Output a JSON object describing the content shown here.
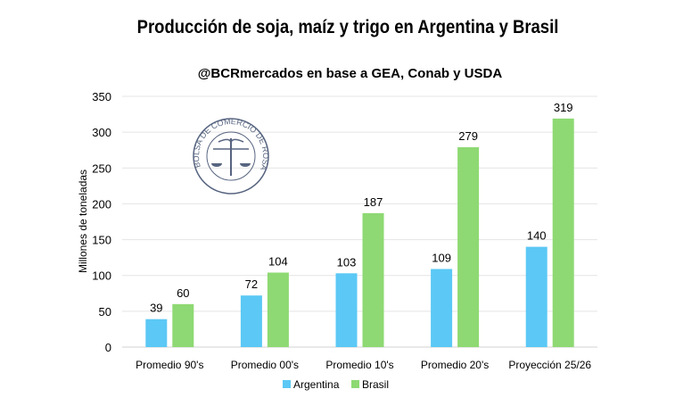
{
  "chart_data": {
    "type": "bar",
    "title": "Producción de soja, maíz y trigo en Argentina y Brasil",
    "subtitle": "@BCRmercados en base a GEA, Conab y USDA",
    "ylabel": "Millones de toneladas",
    "xlabel": "",
    "ylim": [
      0,
      350
    ],
    "yticks": [
      0,
      50,
      100,
      150,
      200,
      250,
      300,
      350
    ],
    "grid": true,
    "legend": "bottom",
    "categories": [
      "Promedio 90's",
      "Promedio 00's",
      "Promedio 10's",
      "Promedio 20's",
      "Proyección 25/26"
    ],
    "series": [
      {
        "name": "Argentina",
        "color": "#5bc8f5",
        "values": [
          39,
          72,
          103,
          109,
          140
        ]
      },
      {
        "name": "Brasil",
        "color": "#8ed973",
        "values": [
          60,
          104,
          187,
          279,
          319
        ]
      }
    ],
    "watermark": "BOLSA DE COMERCIO DE ROSARIO"
  }
}
